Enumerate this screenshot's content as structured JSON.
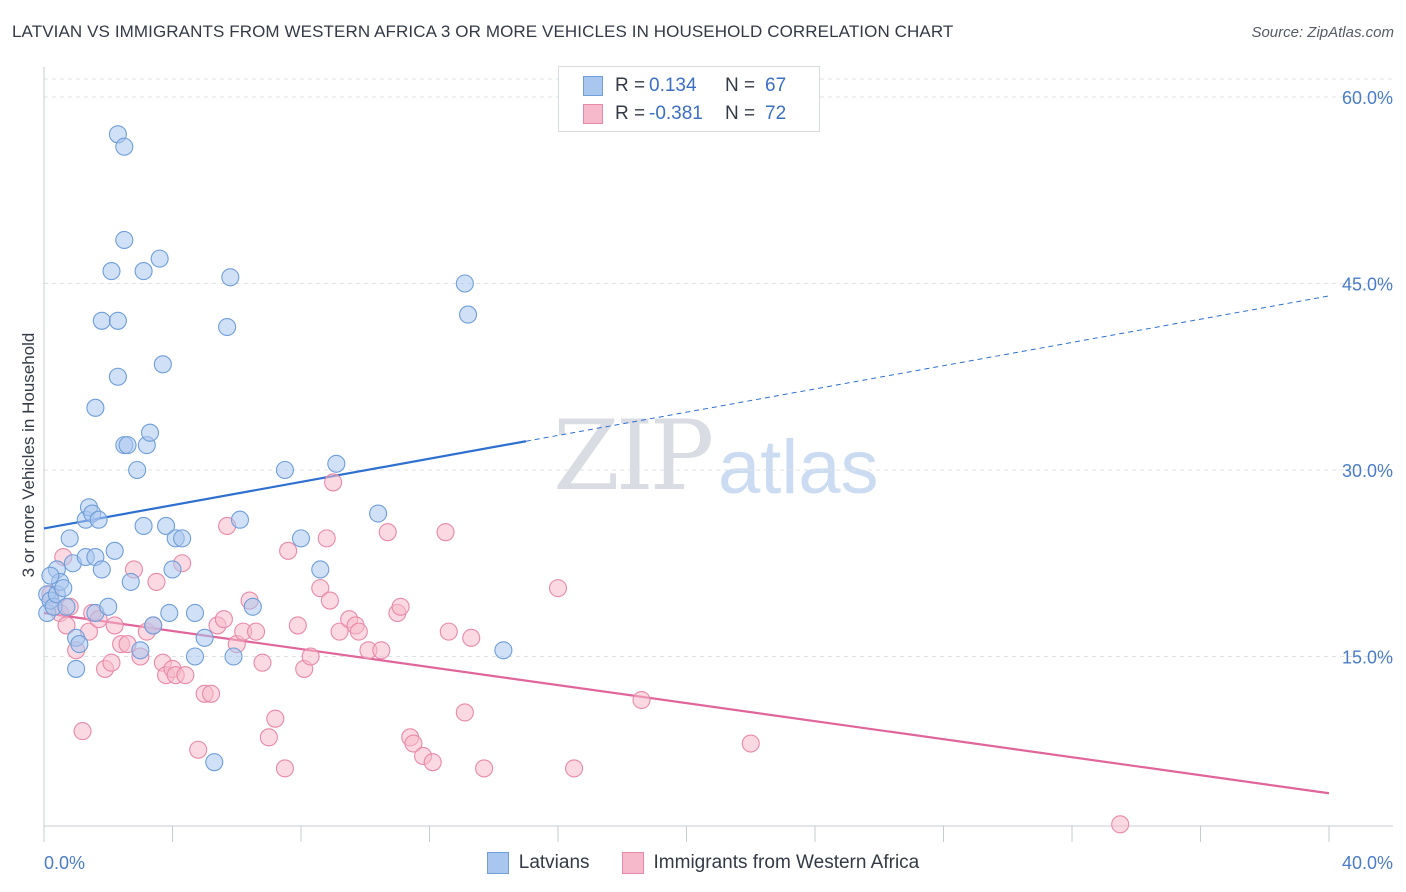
{
  "header": {
    "title": "LATVIAN VS IMMIGRANTS FROM WESTERN AFRICA 3 OR MORE VEHICLES IN HOUSEHOLD CORRELATION CHART",
    "source": "Source: ZipAtlas.com"
  },
  "watermark": {
    "zip": "ZIP",
    "atlas": "atlas"
  },
  "legend": {
    "rows": [
      {
        "r_label": "R =",
        "r_value": "0.134",
        "n_label": "N =",
        "n_value": "67"
      },
      {
        "r_label": "R =",
        "r_value": "-0.381",
        "n_label": "N =",
        "n_value": "72"
      }
    ]
  },
  "bottom_legend": {
    "series1": "Latvians",
    "series2": "Immigrants from Western Africa"
  },
  "axis": {
    "ylabel": "3 or more Vehicles in Household",
    "x_left": "0.0%",
    "x_right": "40.0%",
    "y_ticks": [
      "60.0%",
      "45.0%",
      "30.0%",
      "15.0%"
    ]
  },
  "colors": {
    "blue_fill": "#a9c6ee",
    "blue_stroke": "#6f9ed8",
    "blue_line": "#2e6fd0",
    "pink_fill": "#f6b9cb",
    "pink_stroke": "#e889a8",
    "pink_line": "#e0659a",
    "grid": "#dde0e6",
    "tick_text": "#4a7cc9"
  },
  "chart_data": {
    "type": "scatter",
    "title": "LATVIAN VS IMMIGRANTS FROM WESTERN AFRICA 3 OR MORE VEHICLES IN HOUSEHOLD CORRELATION CHART",
    "xlabel": "",
    "ylabel": "3 or more Vehicles in Household",
    "xlim": [
      0,
      40
    ],
    "ylim": [
      0,
      60
    ],
    "y_ticks": [
      15,
      30,
      45,
      60
    ],
    "grid": true,
    "legend_position": "top-center",
    "series": [
      {
        "name": "Latvians",
        "r": 0.134,
        "n": 67,
        "trend": {
          "x0": 0,
          "y0": 25.3,
          "x_solid_end": 15,
          "x1": 40,
          "y1": 44.0
        },
        "points": [
          [
            0.1,
            18.5
          ],
          [
            0.1,
            20.0
          ],
          [
            0.2,
            19.5
          ],
          [
            0.3,
            19.0
          ],
          [
            0.4,
            22.0
          ],
          [
            0.4,
            20.0
          ],
          [
            0.5,
            21.0
          ],
          [
            0.6,
            20.5
          ],
          [
            0.7,
            19.0
          ],
          [
            0.8,
            24.5
          ],
          [
            0.9,
            22.5
          ],
          [
            1.0,
            16.5
          ],
          [
            1.0,
            14.0
          ],
          [
            1.1,
            16.0
          ],
          [
            1.3,
            26.0
          ],
          [
            1.3,
            23.0
          ],
          [
            1.4,
            27.0
          ],
          [
            1.5,
            26.5
          ],
          [
            1.6,
            23.0
          ],
          [
            1.7,
            26.0
          ],
          [
            1.8,
            22.0
          ],
          [
            1.6,
            18.5
          ],
          [
            2.0,
            19.0
          ],
          [
            1.6,
            35.0
          ],
          [
            1.8,
            42.0
          ],
          [
            2.1,
            46.0
          ],
          [
            2.2,
            23.5
          ],
          [
            2.3,
            42.0
          ],
          [
            2.3,
            37.5
          ],
          [
            2.5,
            48.5
          ],
          [
            2.5,
            32.0
          ],
          [
            2.6,
            32.0
          ],
          [
            2.7,
            21.0
          ],
          [
            2.9,
            30.0
          ],
          [
            3.0,
            15.5
          ],
          [
            3.1,
            25.5
          ],
          [
            3.1,
            46.0
          ],
          [
            3.2,
            32.0
          ],
          [
            3.3,
            33.0
          ],
          [
            3.4,
            17.5
          ],
          [
            3.6,
            47.0
          ],
          [
            3.7,
            38.5
          ],
          [
            3.8,
            25.5
          ],
          [
            3.9,
            18.5
          ],
          [
            4.0,
            22.0
          ],
          [
            4.1,
            24.5
          ],
          [
            4.3,
            24.5
          ],
          [
            4.7,
            18.5
          ],
          [
            4.7,
            15.0
          ],
          [
            5.0,
            16.5
          ],
          [
            5.3,
            6.5
          ],
          [
            5.7,
            41.5
          ],
          [
            5.8,
            45.5
          ],
          [
            5.9,
            15.0
          ],
          [
            6.1,
            26.0
          ],
          [
            6.5,
            19.0
          ],
          [
            7.5,
            30.0
          ],
          [
            8.0,
            24.5
          ],
          [
            8.6,
            22.0
          ],
          [
            9.1,
            30.5
          ],
          [
            10.4,
            26.5
          ],
          [
            13.1,
            45.0
          ],
          [
            13.2,
            42.5
          ],
          [
            14.3,
            15.5
          ],
          [
            2.3,
            57.0
          ],
          [
            2.5,
            56.0
          ],
          [
            0.2,
            21.5
          ]
        ]
      },
      {
        "name": "Immigrants from Western Africa",
        "r": -0.381,
        "n": 72,
        "trend": {
          "x0": 0,
          "y0": 18.5,
          "x1": 40,
          "y1": 4.0
        },
        "points": [
          [
            0.2,
            20.0
          ],
          [
            0.3,
            19.0
          ],
          [
            0.5,
            18.5
          ],
          [
            0.7,
            17.5
          ],
          [
            0.8,
            19.0
          ],
          [
            1.0,
            15.5
          ],
          [
            1.2,
            9.0
          ],
          [
            1.4,
            17.0
          ],
          [
            1.5,
            18.5
          ],
          [
            1.7,
            18.0
          ],
          [
            1.9,
            14.0
          ],
          [
            2.1,
            14.5
          ],
          [
            2.2,
            17.5
          ],
          [
            2.4,
            16.0
          ],
          [
            2.6,
            16.0
          ],
          [
            2.8,
            22.0
          ],
          [
            3.0,
            15.0
          ],
          [
            3.2,
            17.0
          ],
          [
            3.4,
            17.5
          ],
          [
            3.5,
            21.0
          ],
          [
            3.7,
            14.5
          ],
          [
            3.8,
            13.5
          ],
          [
            4.0,
            14.0
          ],
          [
            4.1,
            13.5
          ],
          [
            4.3,
            22.5
          ],
          [
            4.4,
            13.5
          ],
          [
            4.8,
            7.5
          ],
          [
            5.0,
            12.0
          ],
          [
            5.2,
            12.0
          ],
          [
            5.4,
            17.5
          ],
          [
            5.6,
            18.0
          ],
          [
            5.7,
            25.5
          ],
          [
            6.0,
            16.0
          ],
          [
            6.2,
            17.0
          ],
          [
            6.4,
            19.5
          ],
          [
            6.6,
            17.0
          ],
          [
            6.8,
            14.5
          ],
          [
            7.0,
            8.5
          ],
          [
            7.2,
            10.0
          ],
          [
            7.5,
            6.0
          ],
          [
            7.6,
            23.5
          ],
          [
            7.9,
            17.5
          ],
          [
            8.1,
            14.0
          ],
          [
            8.3,
            15.0
          ],
          [
            8.6,
            20.5
          ],
          [
            8.8,
            24.5
          ],
          [
            8.9,
            19.5
          ],
          [
            9.0,
            29.0
          ],
          [
            9.2,
            17.0
          ],
          [
            9.5,
            18.0
          ],
          [
            9.7,
            17.5
          ],
          [
            9.8,
            17.0
          ],
          [
            10.1,
            15.5
          ],
          [
            10.5,
            15.5
          ],
          [
            10.7,
            25.0
          ],
          [
            11.0,
            18.5
          ],
          [
            11.1,
            19.0
          ],
          [
            11.4,
            8.5
          ],
          [
            11.5,
            8.0
          ],
          [
            11.8,
            7.0
          ],
          [
            12.1,
            6.5
          ],
          [
            12.5,
            25.0
          ],
          [
            12.6,
            17.0
          ],
          [
            13.1,
            10.5
          ],
          [
            13.3,
            16.5
          ],
          [
            13.7,
            6.0
          ],
          [
            16.0,
            20.5
          ],
          [
            16.5,
            6.0
          ],
          [
            18.6,
            11.5
          ],
          [
            22.0,
            8.0
          ],
          [
            33.5,
            1.5
          ],
          [
            0.6,
            23.0
          ]
        ]
      }
    ]
  }
}
